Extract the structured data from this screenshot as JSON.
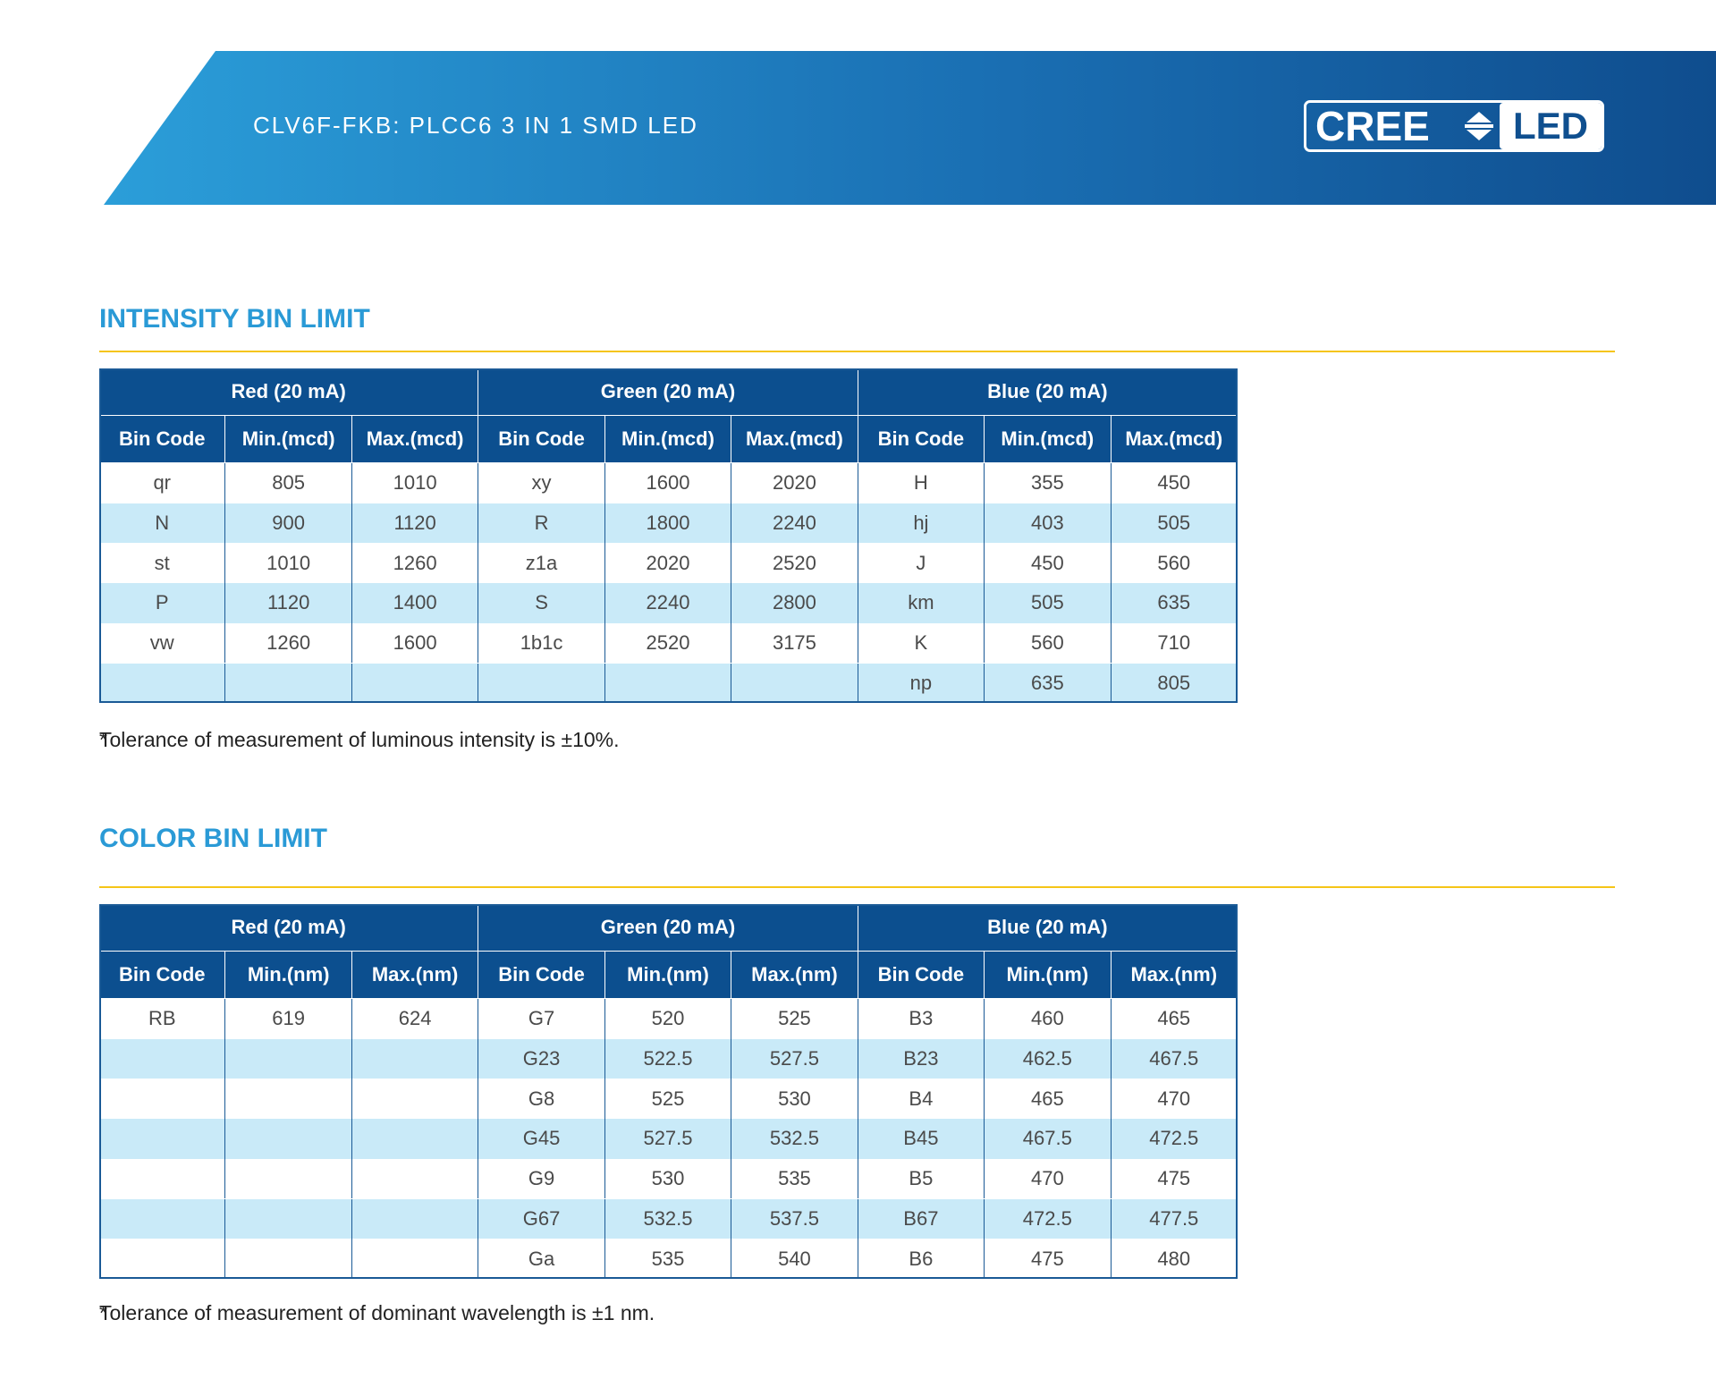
{
  "header": {
    "title": "CLV6F-FKB: PLCC6 3 IN 1 SMD LED",
    "logo": {
      "brand": "CREE",
      "product": "LED"
    }
  },
  "sections": [
    {
      "title": "INTENSITY BIN LIMIT",
      "table": {
        "groups": [
          "Red (20 mA)",
          "Green (20 mA)",
          "Blue (20 mA)"
        ],
        "columns": [
          "Bin Code",
          "Min.(mcd)",
          "Max.(mcd)",
          "Bin Code",
          "Min.(mcd)",
          "Max.(mcd)",
          "Bin Code",
          "Min.(mcd)",
          "Max.(mcd)"
        ],
        "rows": [
          [
            "qr",
            "805",
            "1010",
            "xy",
            "1600",
            "2020",
            "H",
            "355",
            "450"
          ],
          [
            "N",
            "900",
            "1120",
            "R",
            "1800",
            "2240",
            "hj",
            "403",
            "505"
          ],
          [
            "st",
            "1010",
            "1260",
            "z1a",
            "2020",
            "2520",
            "J",
            "450",
            "560"
          ],
          [
            "P",
            "1120",
            "1400",
            "S",
            "2240",
            "2800",
            "km",
            "505",
            "635"
          ],
          [
            "vw",
            "1260",
            "1600",
            "1b1c",
            "2520",
            "3175",
            "K",
            "560",
            "710"
          ],
          [
            null,
            null,
            null,
            null,
            null,
            null,
            "np",
            "635",
            "805"
          ]
        ]
      },
      "note": {
        "mark": "*",
        "text": "Tolerance of measurement of luminous intensity is ±10%."
      }
    },
    {
      "title": "COLOR BIN LIMIT",
      "table": {
        "groups": [
          "Red (20 mA)",
          "Green (20 mA)",
          "Blue (20 mA)"
        ],
        "columns": [
          "Bin Code",
          "Min.(nm)",
          "Max.(nm)",
          "Bin Code",
          "Min.(nm)",
          "Max.(nm)",
          "Bin Code",
          "Min.(nm)",
          "Max.(nm)"
        ],
        "rows": [
          [
            "RB",
            "619",
            "624",
            "G7",
            "520",
            "525",
            "B3",
            "460",
            "465"
          ],
          [
            null,
            null,
            null,
            "G23",
            "522.5",
            "527.5",
            "B23",
            "462.5",
            "467.5"
          ],
          [
            null,
            null,
            null,
            "G8",
            "525",
            "530",
            "B4",
            "465",
            "470"
          ],
          [
            null,
            null,
            null,
            "G45",
            "527.5",
            "532.5",
            "B45",
            "467.5",
            "472.5"
          ],
          [
            null,
            null,
            null,
            "G9",
            "530",
            "535",
            "B5",
            "470",
            "475"
          ],
          [
            null,
            null,
            null,
            "G67",
            "532.5",
            "537.5",
            "B67",
            "472.5",
            "477.5"
          ],
          [
            null,
            null,
            null,
            "Ga",
            "535",
            "540",
            "B6",
            "475",
            "480"
          ]
        ]
      },
      "note": {
        "mark": "*",
        "text": "Tolerance of measurement of dominant wavelength is ±1 nm."
      }
    }
  ]
}
